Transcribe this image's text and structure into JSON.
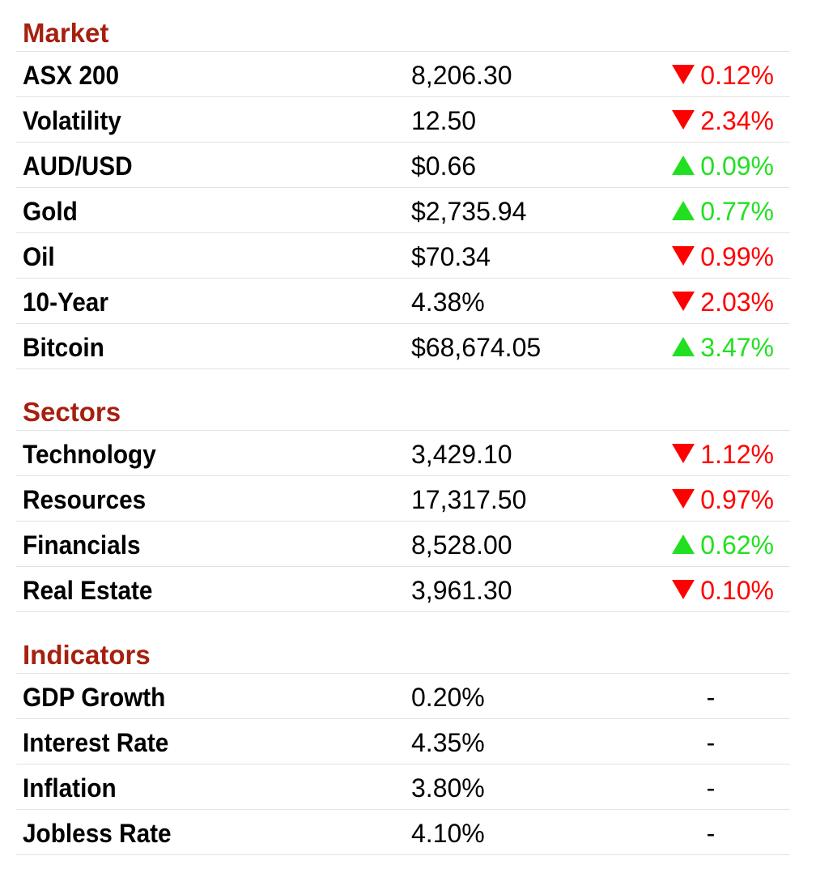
{
  "colors": {
    "heading": "#a5200f",
    "down": "#ff0000",
    "up": "#22e021",
    "text": "#000000",
    "divider": "#e2e2e2"
  },
  "sections": [
    {
      "title": "Market",
      "rows": [
        {
          "label": "ASX 200",
          "value": "8,206.30",
          "direction": "down",
          "change": "0.12%"
        },
        {
          "label": "Volatility",
          "value": "12.50",
          "direction": "down",
          "change": "2.34%"
        },
        {
          "label": "AUD/USD",
          "value": "$0.66",
          "direction": "up",
          "change": "0.09%"
        },
        {
          "label": "Gold",
          "value": "$2,735.94",
          "direction": "up",
          "change": "0.77%"
        },
        {
          "label": "Oil",
          "value": "$70.34",
          "direction": "down",
          "change": "0.99%"
        },
        {
          "label": "10-Year",
          "value": "4.38%",
          "direction": "down",
          "change": "2.03%"
        },
        {
          "label": "Bitcoin",
          "value": "$68,674.05",
          "direction": "up",
          "change": "3.47%"
        }
      ]
    },
    {
      "title": "Sectors",
      "rows": [
        {
          "label": "Technology",
          "value": "3,429.10",
          "direction": "down",
          "change": "1.12%"
        },
        {
          "label": "Resources",
          "value": "17,317.50",
          "direction": "down",
          "change": "0.97%"
        },
        {
          "label": "Financials",
          "value": "8,528.00",
          "direction": "up",
          "change": "0.62%"
        },
        {
          "label": "Real Estate",
          "value": "3,961.30",
          "direction": "down",
          "change": "0.10%"
        }
      ]
    },
    {
      "title": "Indicators",
      "rows": [
        {
          "label": "GDP Growth",
          "value": "0.20%",
          "direction": "none",
          "change": "-"
        },
        {
          "label": "Interest Rate",
          "value": "4.35%",
          "direction": "none",
          "change": "-"
        },
        {
          "label": "Inflation",
          "value": "3.80%",
          "direction": "none",
          "change": "-"
        },
        {
          "label": "Jobless Rate",
          "value": "4.10%",
          "direction": "none",
          "change": "-"
        }
      ]
    }
  ]
}
